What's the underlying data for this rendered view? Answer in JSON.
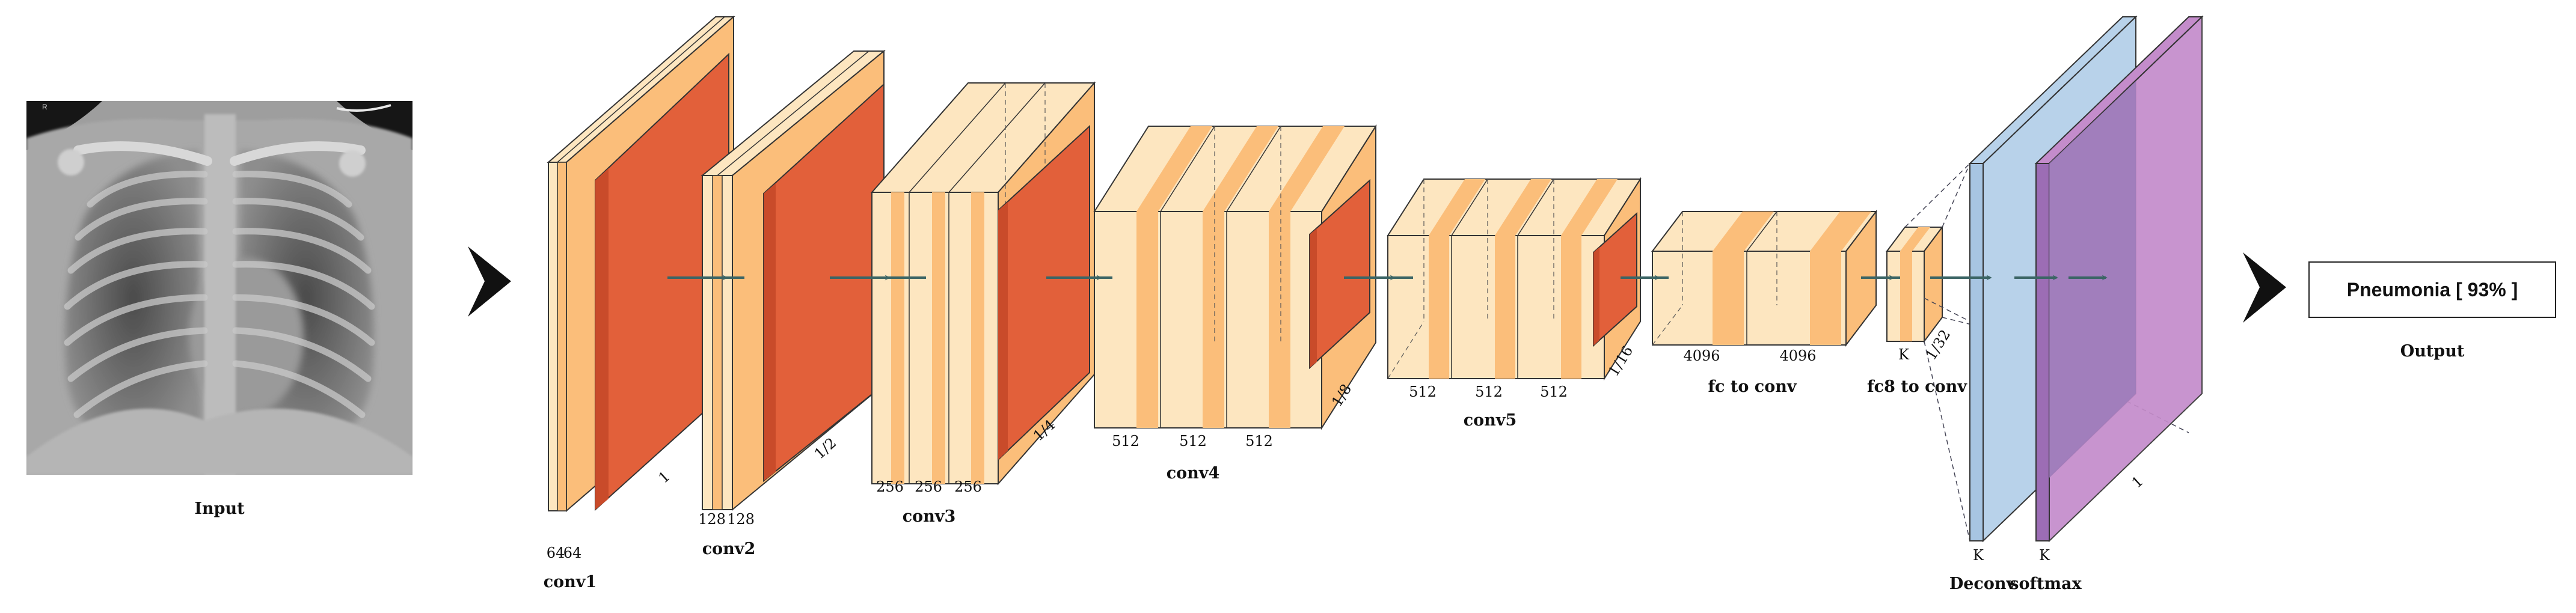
{
  "diagram": {
    "input_label": "Input",
    "output_label": "Output",
    "output_text": "Pneumonia [ 93% ]",
    "xray_marker": "R",
    "stages": {
      "conv1": {
        "label": "conv1",
        "widths": [
          "64",
          "64"
        ],
        "scale": "1"
      },
      "conv2": {
        "label": "conv2",
        "widths": [
          "128",
          "128"
        ],
        "scale": "1/2"
      },
      "conv3": {
        "label": "conv3",
        "widths": [
          "256",
          "256",
          "256"
        ],
        "scale": "1/4"
      },
      "conv4": {
        "label": "conv4",
        "widths": [
          "512",
          "512",
          "512"
        ],
        "scale": "1/8"
      },
      "conv5": {
        "label": "conv5",
        "widths": [
          "512",
          "512",
          "512"
        ],
        "scale": "1/16"
      },
      "fc_to_conv": {
        "label": "fc to conv",
        "widths": [
          "4096",
          "4096"
        ]
      },
      "fc8_to_conv": {
        "label": "fc8 to conv",
        "widths": [
          "K"
        ],
        "scale": "1/32"
      },
      "deconv": {
        "label": "Deconv",
        "width": "K"
      },
      "softmax": {
        "label": "softmax",
        "width": "K",
        "scale": "1"
      }
    },
    "colors": {
      "conv_face": "#FDE6C0",
      "conv_stripe": "#FBBE7A",
      "pool": "#E2603A",
      "deconv": "#B8D2EA",
      "softmax": "#A877BE",
      "arrow": "#3B6565"
    }
  }
}
